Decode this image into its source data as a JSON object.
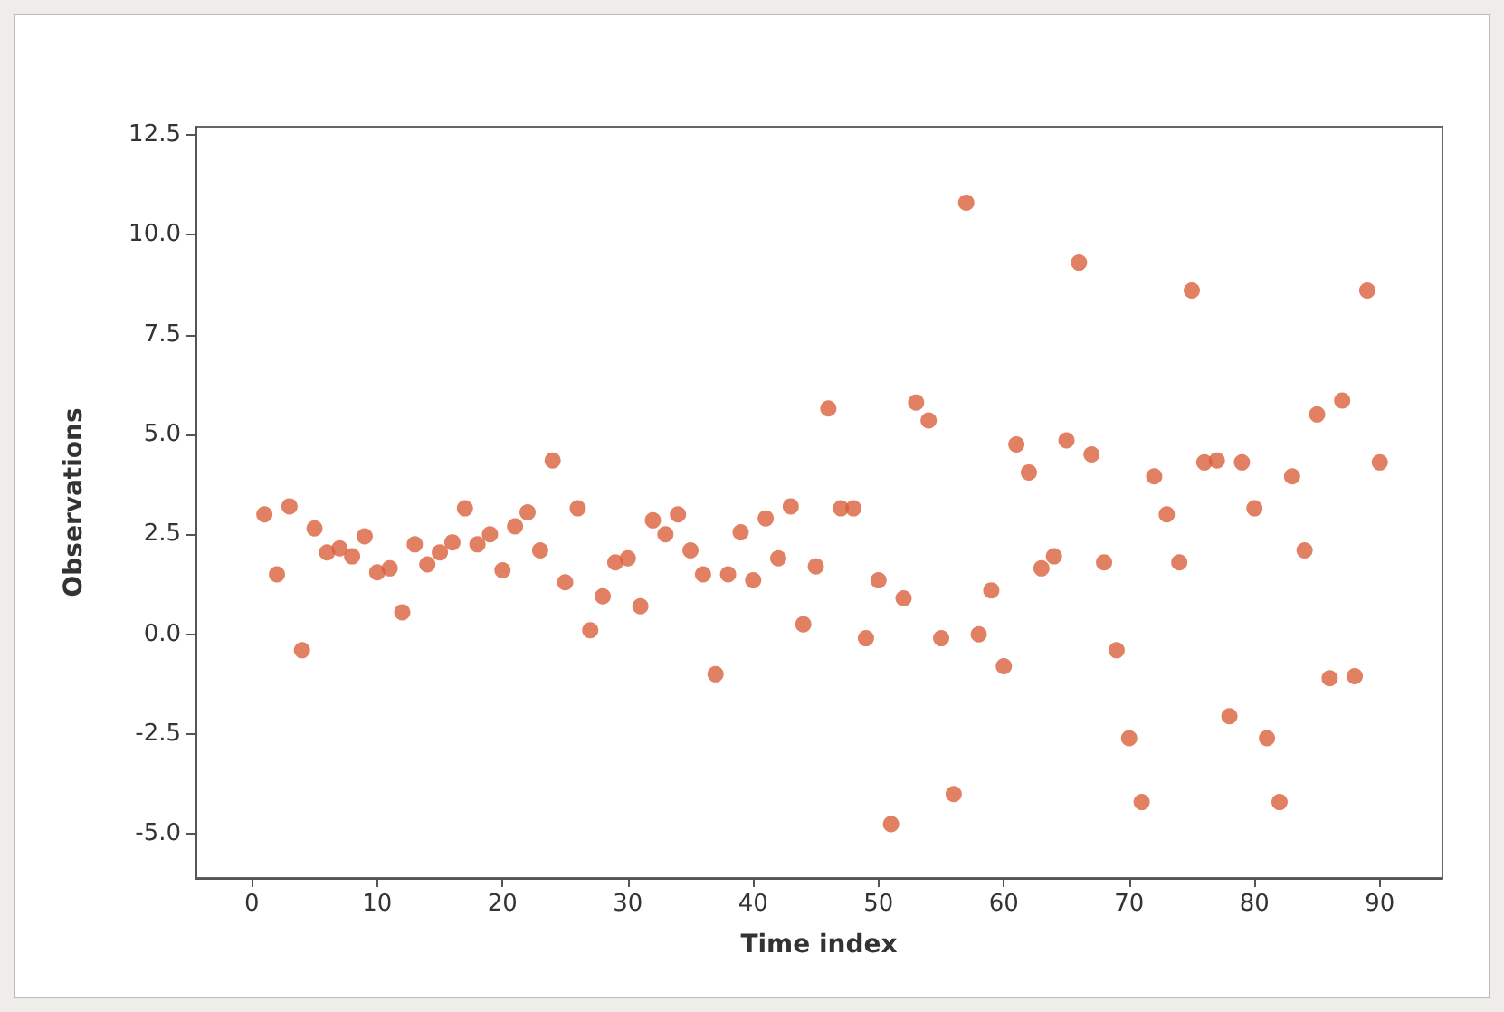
{
  "chart_data": {
    "type": "scatter",
    "xlabel": "Time index",
    "ylabel": "Observations",
    "x": [
      1,
      2,
      3,
      4,
      5,
      6,
      7,
      8,
      9,
      10,
      11,
      12,
      13,
      14,
      15,
      16,
      17,
      18,
      19,
      20,
      21,
      22,
      23,
      24,
      25,
      26,
      27,
      28,
      29,
      30,
      31,
      32,
      33,
      34,
      35,
      36,
      37,
      38,
      39,
      40,
      41,
      42,
      43,
      44,
      45,
      46,
      47,
      48,
      49,
      50,
      51,
      52,
      53,
      54,
      55,
      56,
      57,
      58,
      59,
      60,
      61,
      62,
      63,
      64,
      65,
      66,
      67,
      68,
      69,
      70,
      71,
      72,
      73,
      74,
      75,
      76,
      77,
      78,
      79,
      80,
      81,
      82,
      83,
      84,
      85,
      86,
      87,
      88,
      89,
      90
    ],
    "series": [
      {
        "color": "#d9603b",
        "values": [
          3.0,
          1.5,
          3.2,
          -0.4,
          2.65,
          2.05,
          2.15,
          1.95,
          2.45,
          1.55,
          1.65,
          0.55,
          2.25,
          1.75,
          2.05,
          2.3,
          3.15,
          2.25,
          2.5,
          1.6,
          2.7,
          3.05,
          2.1,
          4.35,
          1.3,
          3.15,
          0.1,
          0.95,
          1.8,
          1.9,
          0.7,
          2.85,
          2.5,
          3.0,
          2.1,
          1.5,
          -1.0,
          1.5,
          2.55,
          1.35,
          2.9,
          1.9,
          3.2,
          0.25,
          1.7,
          5.65,
          3.15,
          3.15,
          -0.1,
          1.35,
          -4.75,
          0.9,
          5.8,
          5.35,
          -0.1,
          -4.0,
          10.8,
          0.0,
          1.1,
          -0.8,
          4.75,
          4.05,
          1.65,
          1.95,
          4.85,
          9.3,
          4.5,
          1.8,
          -0.4,
          -2.6,
          -4.2,
          3.95,
          3.0,
          1.8,
          8.6,
          4.3,
          4.35,
          -2.05,
          4.3,
          3.15,
          -2.6,
          -4.2,
          3.95,
          2.1,
          5.5,
          -1.1,
          5.85,
          -1.05,
          8.6,
          4.3
        ]
      }
    ],
    "xlim": [
      -4.5,
      95
    ],
    "xticks": [
      0,
      10,
      20,
      30,
      40,
      50,
      60,
      70,
      80,
      90
    ],
    "ylim": [
      -6.1,
      12.7
    ],
    "yticks": [
      {
        "value": -5,
        "label": "-5.0"
      },
      -2.5,
      {
        "value": 0,
        "label": "0.0"
      },
      2.5,
      {
        "value": 5,
        "label": "5.0"
      },
      7.5,
      {
        "value": 10,
        "label": "10.0"
      },
      12.5
    ],
    "grid": false,
    "marker": "circle"
  }
}
